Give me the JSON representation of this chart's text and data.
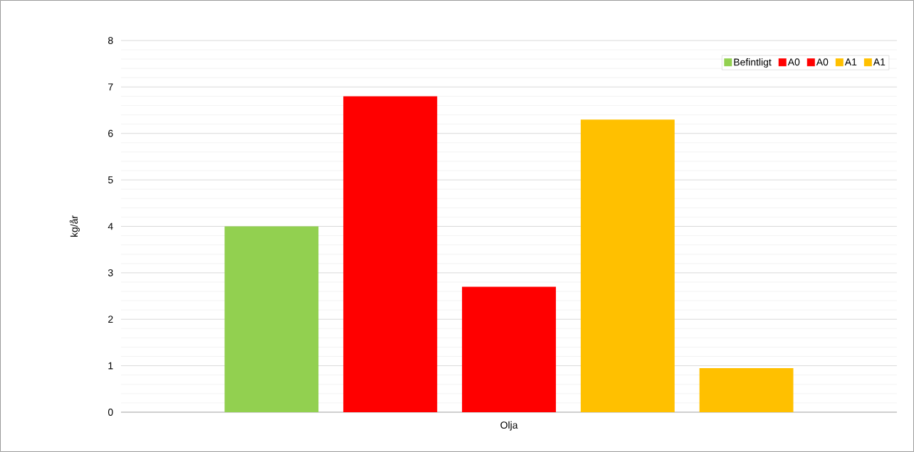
{
  "chart_data": {
    "type": "bar",
    "ylabel": "kg/år",
    "categories": [
      "Olja"
    ],
    "series": [
      {
        "name": "Befintligt",
        "color": "#92d050",
        "values": [
          4.0
        ]
      },
      {
        "name": "A0",
        "color": "#ff0000",
        "values": [
          6.8
        ]
      },
      {
        "name": "A0",
        "color": "#ff0000",
        "values": [
          2.7
        ]
      },
      {
        "name": "A1",
        "color": "#ffc000",
        "values": [
          6.3
        ]
      },
      {
        "name": "A1",
        "color": "#ffc000",
        "values": [
          0.95
        ]
      }
    ],
    "ylim": [
      0,
      8
    ],
    "yticks": [
      0,
      1,
      2,
      3,
      4,
      5,
      6,
      7,
      8
    ],
    "grid": "y",
    "legend": "top right"
  }
}
